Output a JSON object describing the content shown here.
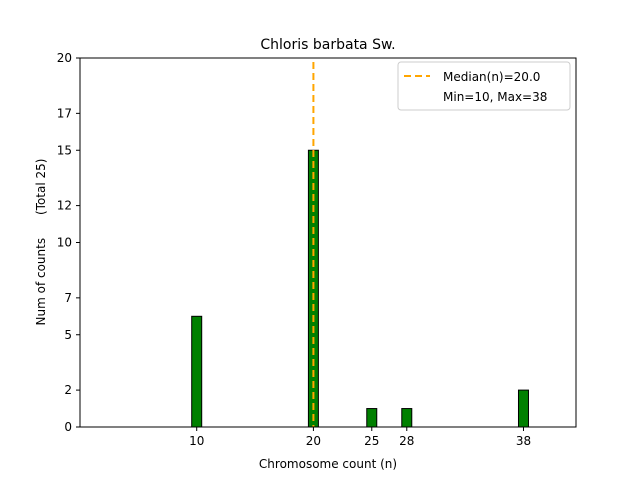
{
  "chart_data": {
    "type": "bar",
    "title": "Chloris barbata Sw.",
    "xlabel": "Chromosome count (n)",
    "ylabel": "Num of counts      (Total 25)",
    "x": [
      10,
      20,
      25,
      28,
      38
    ],
    "values": [
      6,
      15,
      1,
      1,
      2
    ],
    "xlim": [
      0,
      42.5
    ],
    "ylim": [
      0,
      20
    ],
    "xticks": [
      10,
      20,
      25,
      28,
      38
    ],
    "yticks": [
      0,
      2,
      5,
      7,
      10,
      12,
      15,
      17,
      20
    ],
    "bar_color": "#008000",
    "bar_edge_color": "#000000",
    "median": 20.0,
    "median_color": "#FFA500",
    "legend": {
      "placement": "top-right",
      "entries": [
        "Median(n)=20.0",
        "Min=10, Max=38"
      ]
    },
    "grid": false
  }
}
